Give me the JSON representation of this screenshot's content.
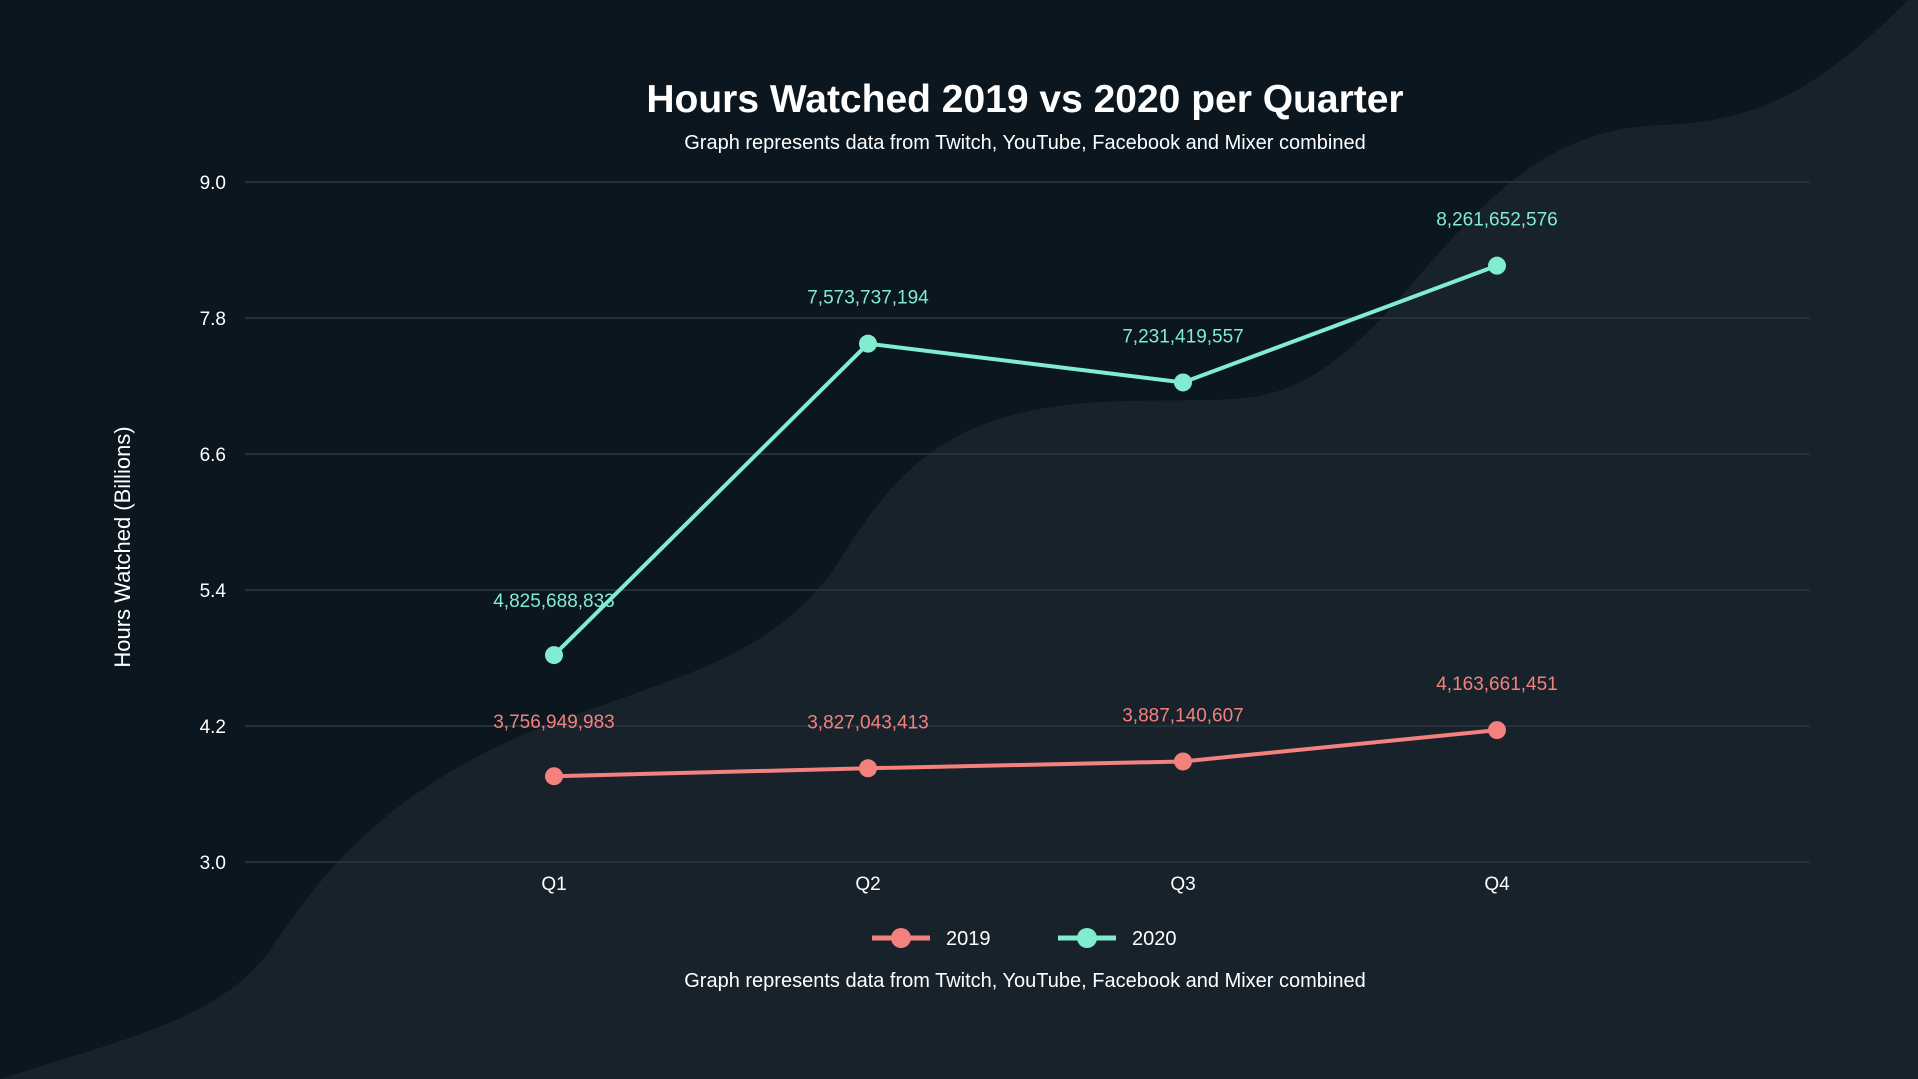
{
  "colors": {
    "background": "#0b161e",
    "wave": "#17222a",
    "grid": "#24313a",
    "text": "#ffffff",
    "series_2019": "#f4817e",
    "series_2020": "#80ecd0"
  },
  "chart_data": {
    "type": "line",
    "title": "Hours Watched 2019 vs 2020 per Quarter",
    "subtitle": "Graph represents data from Twitch, YouTube, Facebook and Mixer combined",
    "caption": "Graph represents data from Twitch, YouTube, Facebook and Mixer combined",
    "xlabel": "",
    "ylabel": "Hours Watched (Billions)",
    "categories": [
      "Q1",
      "Q2",
      "Q3",
      "Q4"
    ],
    "ylim": [
      3.0,
      9.0
    ],
    "yticks": [
      "3.0",
      "4.2",
      "5.4",
      "6.6",
      "7.8",
      "9.0"
    ],
    "grid": true,
    "legend": "bottom",
    "series": [
      {
        "name": "2019",
        "values": [
          3756949983,
          3827043413,
          3887140607,
          4163661451
        ],
        "labels": [
          "3,756,949,983",
          "3,827,043,413",
          "3,887,140,607",
          "4,163,661,451"
        ]
      },
      {
        "name": "2020",
        "values": [
          4825688833,
          7573737194,
          7231419557,
          8261652576
        ],
        "labels": [
          "4,825,688,833",
          "7,573,737,194",
          "7,231,419,557",
          "8,261,652,576"
        ]
      }
    ]
  }
}
